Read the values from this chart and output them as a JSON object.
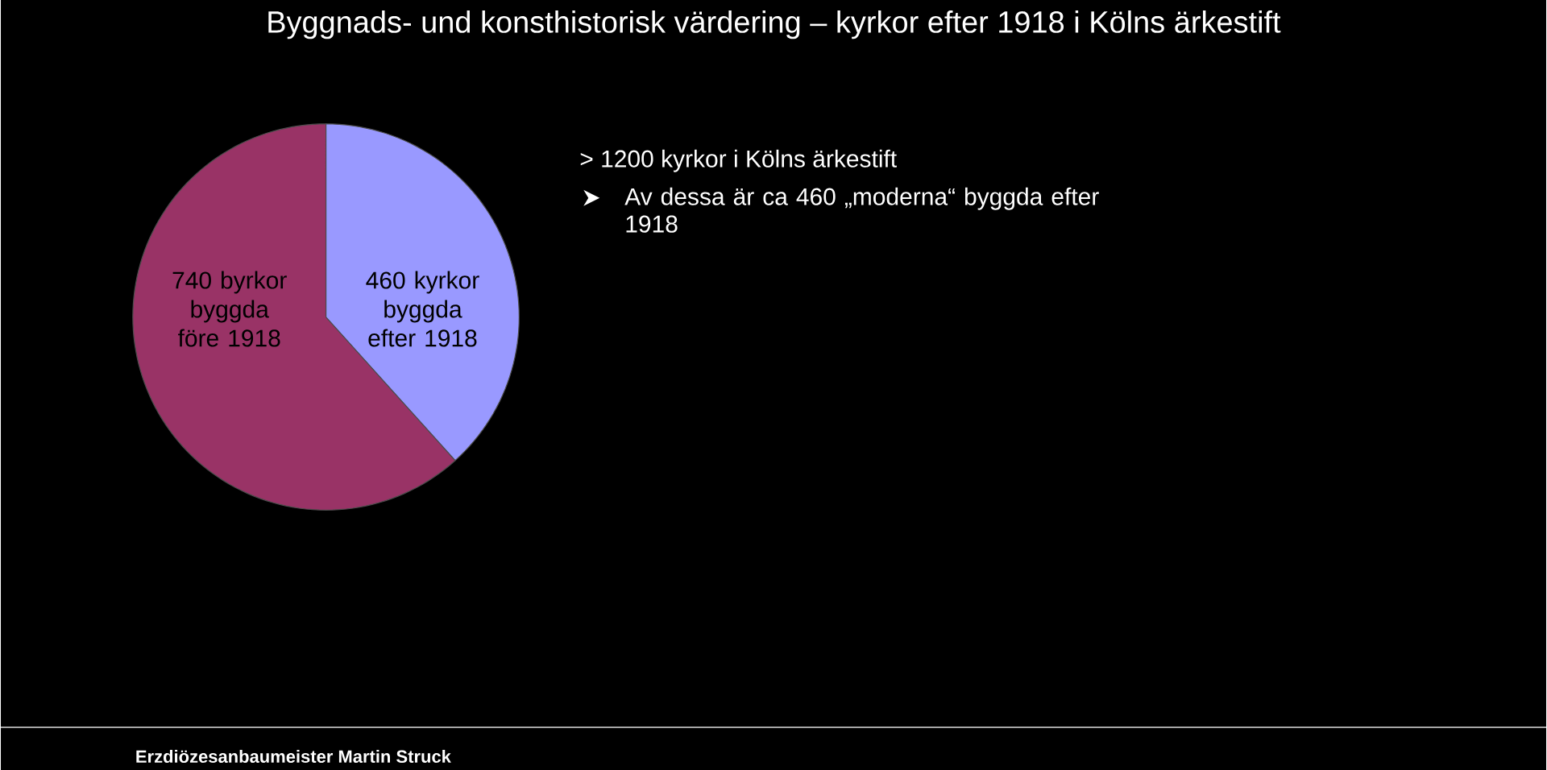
{
  "chart_data": {
    "type": "pie",
    "title": "Byggnads- und konsthistorisk värdering – kyrkor efter 1918 i Kölns ärkestift",
    "categories": [
      "740 byrkor byggda före 1918",
      "460 kyrkor byggda efter 1918"
    ],
    "values": [
      740,
      460
    ],
    "colors": [
      "#993366",
      "#9999ff"
    ],
    "annotations": [
      "> 1200 kyrkor i Kölns ärkestift",
      "Av dessa är ca 460 „moderna“ byggda efter 1918",
      "Erzdiözesanbaumeister Martin Struck"
    ]
  }
}
